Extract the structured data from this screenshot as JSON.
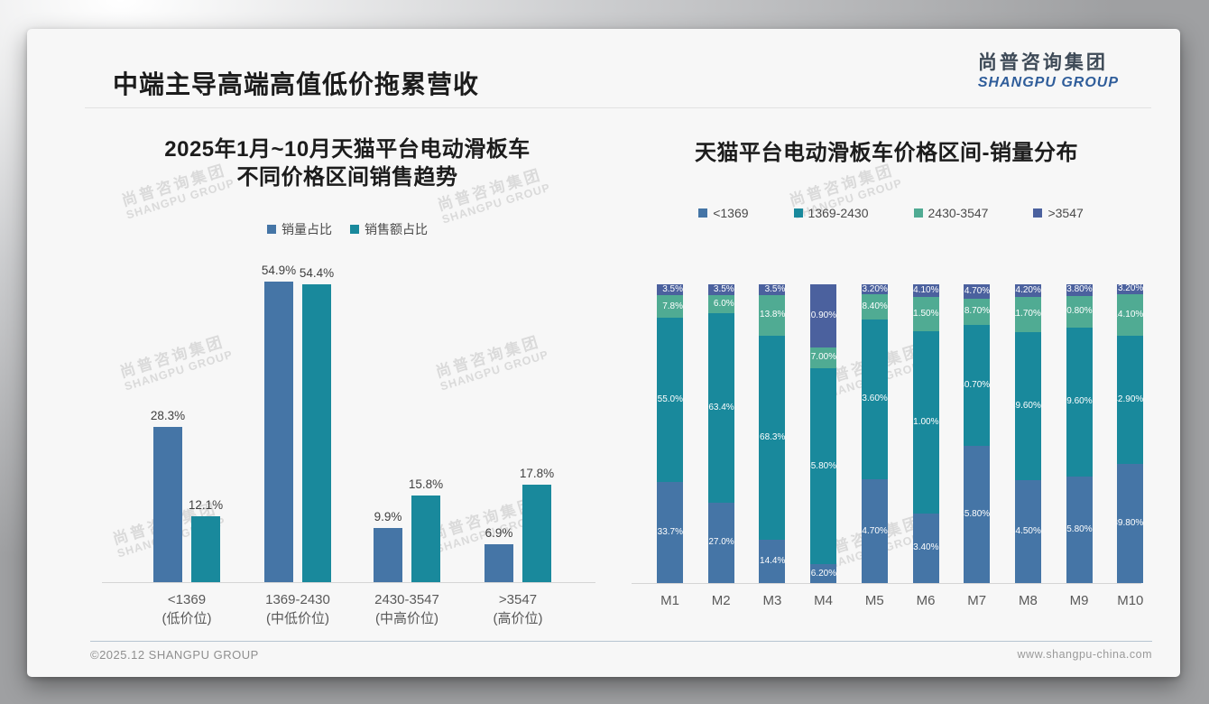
{
  "slide": {
    "main_title": "中端主导高端高值低价拖累营收",
    "logo": {
      "cn": "尚普咨询集团",
      "en": "SHANGPU GROUP"
    },
    "watermark": {
      "cn": "尚普咨询集团",
      "en": "SHANGPU GROUP"
    },
    "footer": {
      "left": "©2025.12 SHANGPU GROUP",
      "right": "www.shangpu-china.com"
    }
  },
  "colors": {
    "blue": "#4575a6",
    "teal": "#19899c",
    "green": "#50ab93",
    "navy": "#4b619e",
    "logo_blue": "#2f5d9a",
    "slide_bg": "#f7f7f7"
  },
  "chart_data": [
    {
      "type": "bar",
      "title_line1": "2025年1月~10月天猫平台电动滑板车",
      "title_line2": "不同价格区间销售趋势",
      "categories": [
        "<1369",
        "1369-2430",
        "2430-3547",
        ">3547"
      ],
      "category_sub": [
        "(低价位)",
        "(中低价位)",
        "(中高价位)",
        "(高价位)"
      ],
      "ylim": [
        0,
        60
      ],
      "grid": false,
      "legend_position": "top",
      "series": [
        {
          "name": "销量占比",
          "color": "#4575a6",
          "values": [
            28.3,
            54.9,
            9.9,
            6.9
          ],
          "labels": [
            "28.3%",
            "54.9%",
            "9.9%",
            "6.9%"
          ]
        },
        {
          "name": "销售额占比",
          "color": "#19899c",
          "values": [
            12.1,
            54.4,
            15.8,
            17.8
          ],
          "labels": [
            "12.1%",
            "54.4%",
            "15.8%",
            "17.8%"
          ]
        }
      ]
    },
    {
      "type": "stacked-bar",
      "title": "天猫平台电动滑板车价格区间-销量分布",
      "categories": [
        "M1",
        "M2",
        "M3",
        "M4",
        "M5",
        "M6",
        "M7",
        "M8",
        "M9",
        "M10"
      ],
      "ylim": [
        0,
        100
      ],
      "grid": false,
      "legend_position": "top",
      "series": [
        {
          "name": "<1369",
          "color": "#4575a6",
          "values": [
            33.7,
            27.0,
            14.4,
            6.2,
            34.7,
            23.4,
            45.8,
            34.5,
            35.8,
            39.8
          ],
          "labels": [
            "33.7%",
            "27.0%",
            "14.4%",
            "6.20%",
            "34.70%",
            "23.40%",
            "45.80%",
            "34.50%",
            "35.80%",
            "39.80%"
          ]
        },
        {
          "name": "1369-2430",
          "color": "#19899c",
          "values": [
            55.0,
            63.4,
            68.3,
            65.8,
            53.6,
            61.0,
            40.7,
            49.6,
            49.6,
            42.9
          ],
          "labels": [
            "55.0%",
            "63.4%",
            "68.3%",
            "65.80%",
            "53.60%",
            "61.00%",
            "40.70%",
            "49.60%",
            "49.60%",
            "42.90%"
          ]
        },
        {
          "name": "2430-3547",
          "color": "#50ab93",
          "values": [
            7.8,
            6.0,
            13.8,
            7.0,
            8.4,
            11.5,
            8.7,
            11.7,
            10.8,
            14.1
          ],
          "labels": [
            "7.8%",
            "6.0%",
            "13.8%",
            "7.00%",
            "8.40%",
            "11.50%",
            "8.70%",
            "11.70%",
            "10.80%",
            "14.10%"
          ]
        },
        {
          "name": ">3547",
          "color": "#4b619e",
          "values": [
            3.5,
            3.5,
            3.5,
            20.9,
            3.2,
            4.1,
            4.7,
            4.2,
            3.8,
            3.2
          ],
          "labels": [
            "3.5%",
            "3.5%",
            "3.5%",
            "20.90%",
            "3.20%",
            "4.10%",
            "4.70%",
            "4.20%",
            "3.80%",
            "3.20%"
          ]
        }
      ]
    }
  ]
}
